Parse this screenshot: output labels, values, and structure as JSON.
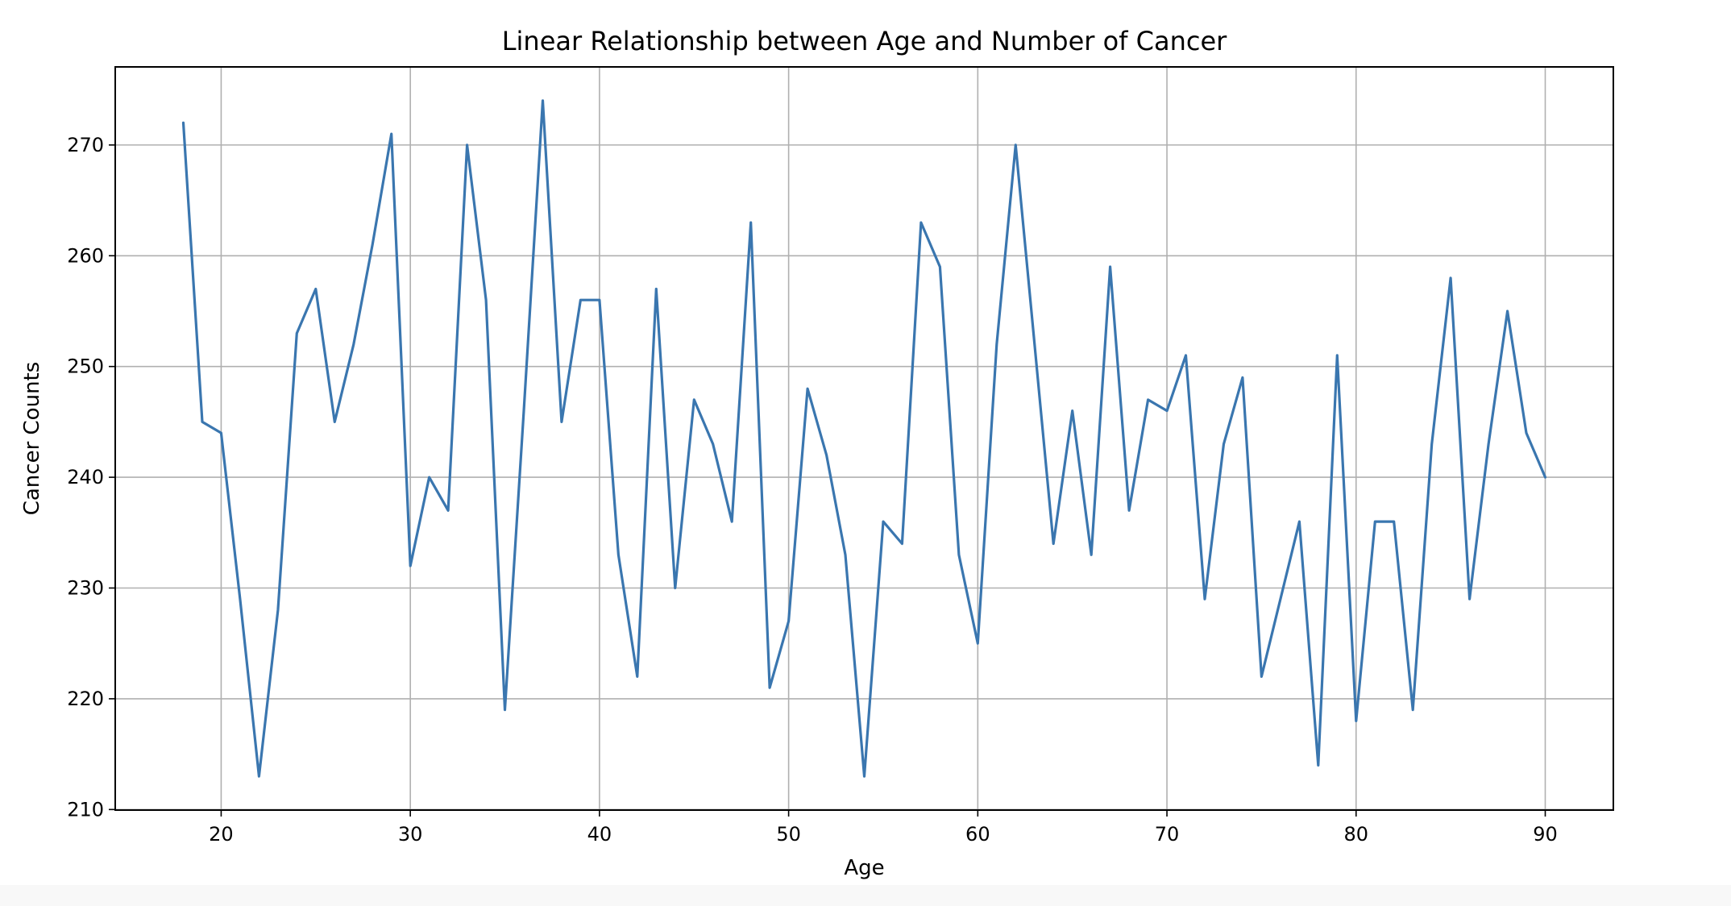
{
  "chart_data": {
    "type": "line",
    "title": "Linear Relationship between Age and Number of Cancer",
    "xlabel": "Age",
    "ylabel": "Cancer Counts",
    "xlim": [
      14.4,
      93.6
    ],
    "ylim": [
      209.95,
      277.05
    ],
    "xticks": [
      20,
      30,
      40,
      50,
      60,
      70,
      80,
      90
    ],
    "yticks": [
      210,
      220,
      230,
      240,
      250,
      260,
      270
    ],
    "grid": true,
    "legend": "none",
    "color": "#3a76af",
    "series": [
      {
        "name": "Cancer Counts",
        "x": [
          18,
          19,
          20,
          21,
          22,
          23,
          24,
          25,
          26,
          27,
          28,
          29,
          30,
          31,
          32,
          33,
          34,
          35,
          36,
          37,
          38,
          39,
          40,
          41,
          42,
          43,
          44,
          45,
          46,
          47,
          48,
          49,
          50,
          51,
          52,
          53,
          54,
          55,
          56,
          57,
          58,
          59,
          60,
          61,
          62,
          63,
          64,
          65,
          66,
          67,
          68,
          69,
          70,
          71,
          72,
          73,
          74,
          75,
          76,
          77,
          78,
          79,
          80,
          81,
          82,
          83,
          84,
          85,
          86,
          87,
          88,
          89,
          90
        ],
        "values": [
          272,
          245,
          244,
          229,
          213,
          228,
          253,
          257,
          245,
          252,
          261,
          271,
          232,
          240,
          237,
          270,
          256,
          219,
          246,
          274,
          245,
          256,
          256,
          233,
          222,
          257,
          230,
          247,
          243,
          236,
          263,
          221,
          227,
          248,
          242,
          233,
          213,
          236,
          234,
          263,
          259,
          233,
          225,
          252,
          270,
          252,
          234,
          246,
          233,
          259,
          237,
          247,
          246,
          251,
          229,
          243,
          249,
          222,
          229,
          236,
          214,
          251,
          218,
          236,
          236,
          219,
          243,
          258,
          229,
          243,
          255,
          244,
          240
        ]
      }
    ]
  }
}
